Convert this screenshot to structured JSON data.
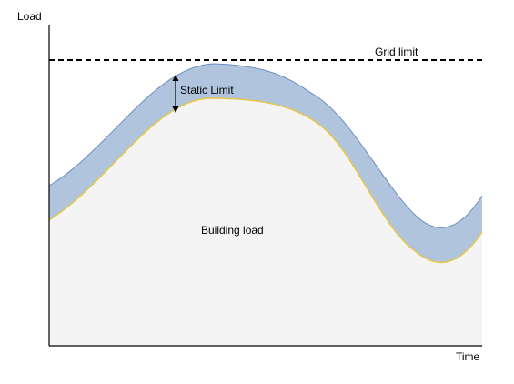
{
  "diagram": {
    "y_axis_label": "Load",
    "x_axis_label": "Time",
    "grid_limit_label": "Grid limit",
    "static_limit_label": "Static Limit",
    "building_load_label": "Building load"
  },
  "colors": {
    "building_load_fill": "#f4f4f4",
    "static_band_fill": "#b0c4de",
    "static_band_edge": "#6c8ebf",
    "building_load_edge": "#e6c84a",
    "grid_limit_line": "#000000",
    "axis": "#000000"
  }
}
